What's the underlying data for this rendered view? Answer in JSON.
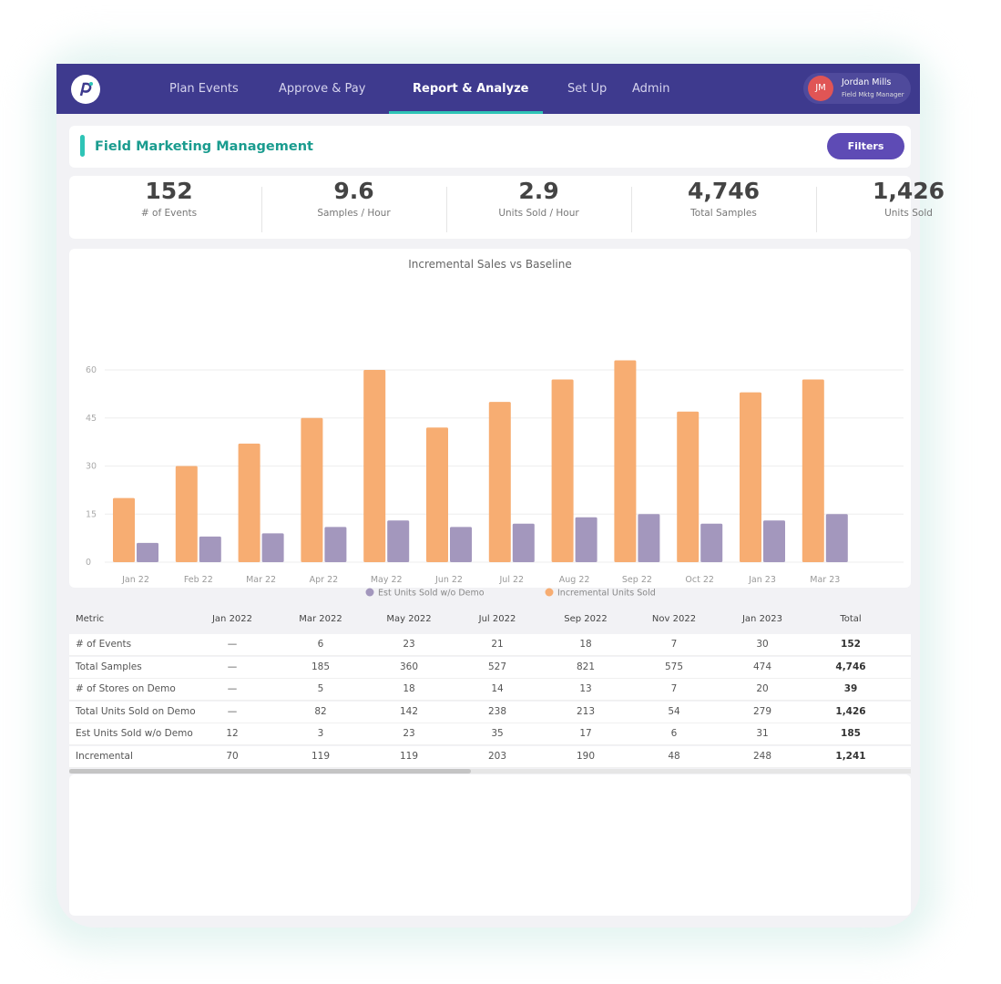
{
  "nav": {
    "items": [
      "Plan Events",
      "Approve & Pay",
      "Report & Analyze",
      "Set Up",
      "Admin"
    ]
  },
  "user": {
    "initials": "JM",
    "name": "Jordan Mills",
    "role": "Field Mktg Manager"
  },
  "header": {
    "title": "Field Marketing Management",
    "button": "Filters"
  },
  "kpis": [
    {
      "value": "152",
      "label": "# of Events"
    },
    {
      "value": "9.6",
      "label": "Samples / Hour"
    },
    {
      "value": "2.9",
      "label": "Units Sold / Hour"
    },
    {
      "value": "4,746",
      "label": "Total Samples"
    },
    {
      "value": "1,426",
      "label": "Units Sold"
    }
  ],
  "chart_data": {
    "type": "bar",
    "title": "Incremental Sales vs Baseline",
    "categories": [
      "Jan 22",
      "Feb 22",
      "Mar 22",
      "Apr 22",
      "May 22",
      "Jun 22",
      "Jul 22",
      "Aug 22",
      "Sep 22",
      "Oct 22",
      "Jan 23",
      "Mar 23"
    ],
    "series": [
      {
        "name": "Est Units Sold w/o Demo",
        "color": "#a397bd",
        "values": [
          6,
          8,
          9,
          11,
          13,
          11,
          12,
          14,
          15,
          12,
          13,
          15
        ]
      },
      {
        "name": "Incremental Units Sold",
        "color": "#f7ad72",
        "values": [
          20,
          30,
          37,
          45,
          60,
          42,
          50,
          57,
          63,
          47,
          53,
          57
        ]
      }
    ],
    "ylim": [
      0,
      60
    ],
    "yticks": [
      0,
      15,
      30,
      45,
      60
    ],
    "grid": true
  },
  "table": {
    "columns": [
      "Metric",
      "Jan 2022",
      "Mar 2022",
      "May 2022",
      "Jul 2022",
      "Sep 2022",
      "Nov 2022",
      "Jan 2023",
      "Total"
    ],
    "rows": [
      [
        "# of Events",
        "—",
        "6",
        "23",
        "21",
        "18",
        "7",
        "30",
        "152"
      ],
      [
        "Total Samples",
        "—",
        "185",
        "360",
        "527",
        "821",
        "575",
        "474",
        "4,746"
      ],
      [
        "# of Stores on Demo",
        "—",
        "5",
        "18",
        "14",
        "13",
        "7",
        "20",
        "39"
      ],
      [
        "Total Units Sold on Demo",
        "—",
        "82",
        "142",
        "238",
        "213",
        "54",
        "279",
        "1,426"
      ],
      [
        "Est Units Sold w/o Demo",
        "12",
        "3",
        "23",
        "35",
        "17",
        "6",
        "31",
        "185"
      ],
      [
        "Incremental",
        "70",
        "119",
        "119",
        "203",
        "190",
        "48",
        "248",
        "1,241"
      ]
    ]
  }
}
